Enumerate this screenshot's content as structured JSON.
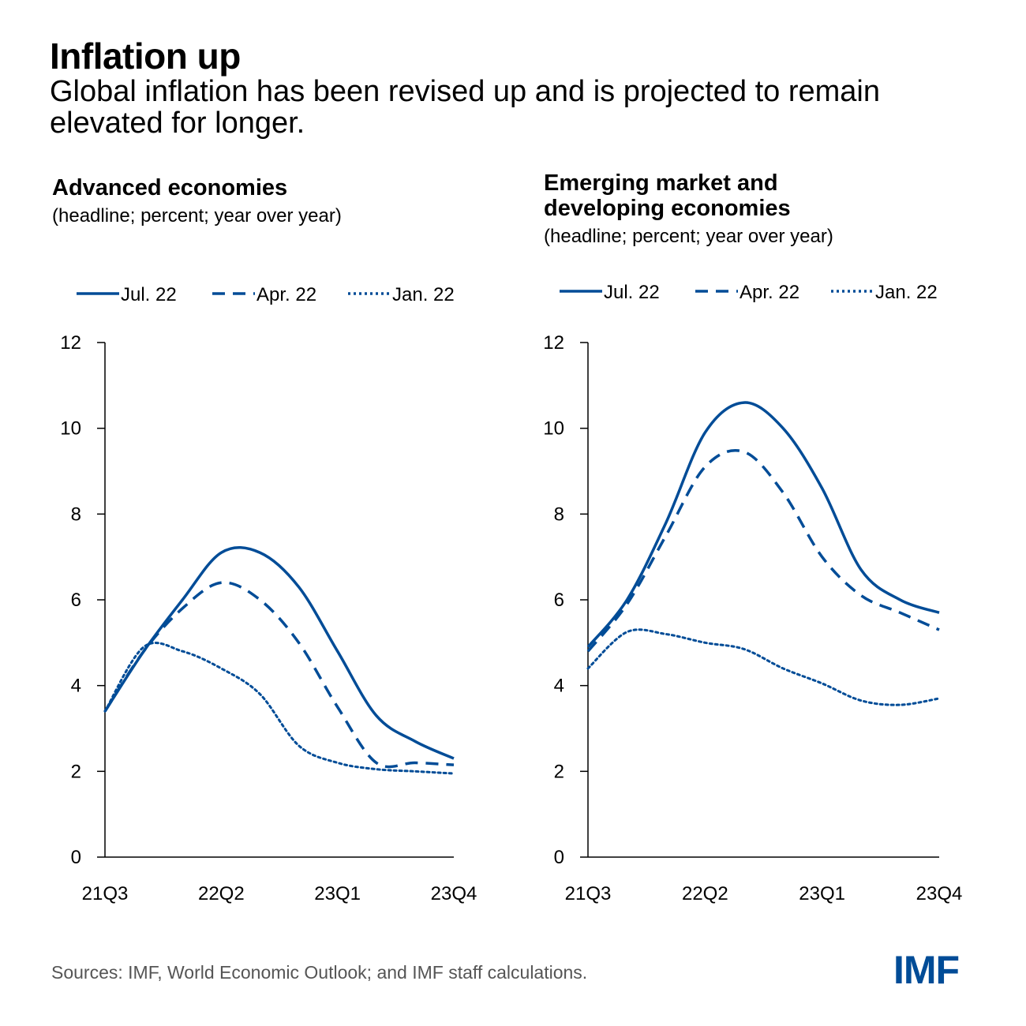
{
  "title": "Inflation up",
  "subtitle": "Global inflation has been revised up and is projected to remain elevated for longer.",
  "source": "Sources: IMF, World Economic Outlook; and IMF staff calculations.",
  "logo": "IMF",
  "colors": {
    "line": "#004C97"
  },
  "chart_data": [
    {
      "type": "line",
      "title": "Advanced economies",
      "subtitle": "(headline; percent; year over year)",
      "x": [
        "21Q3",
        "21Q4",
        "22Q1",
        "22Q2",
        "22Q3",
        "22Q4",
        "23Q1",
        "23Q2",
        "23Q3",
        "23Q4"
      ],
      "xticks": [
        "21Q3",
        "22Q2",
        "23Q1",
        "23Q4"
      ],
      "ylim": [
        0,
        12
      ],
      "yticks": [
        0,
        2,
        4,
        6,
        8,
        10,
        12
      ],
      "legend": "top",
      "series": [
        {
          "name": "Jul. 22",
          "style": "solid",
          "values": [
            3.4,
            4.8,
            6.0,
            7.1,
            7.1,
            6.3,
            4.8,
            3.3,
            2.7,
            2.3
          ]
        },
        {
          "name": "Apr. 22",
          "style": "dashed",
          "values": [
            3.4,
            4.8,
            5.8,
            6.4,
            6.0,
            5.0,
            3.5,
            2.2,
            2.2,
            2.15
          ]
        },
        {
          "name": "Jan. 22",
          "style": "dotted",
          "values": [
            3.4,
            4.9,
            4.8,
            4.4,
            3.8,
            2.6,
            2.2,
            2.05,
            2.0,
            1.95
          ]
        }
      ]
    },
    {
      "type": "line",
      "title": "Emerging market and developing economies",
      "subtitle": "(headline; percent; year over year)",
      "x": [
        "21Q3",
        "21Q4",
        "22Q1",
        "22Q2",
        "22Q3",
        "22Q4",
        "23Q1",
        "23Q2",
        "23Q3",
        "23Q4"
      ],
      "xticks": [
        "21Q3",
        "22Q2",
        "23Q1",
        "23Q4"
      ],
      "ylim": [
        0,
        12
      ],
      "yticks": [
        0,
        2,
        4,
        6,
        8,
        10,
        12
      ],
      "legend": "top",
      "series": [
        {
          "name": "Jul. 22",
          "style": "solid",
          "values": [
            4.9,
            6.0,
            7.8,
            9.9,
            10.6,
            10.0,
            8.6,
            6.7,
            6.0,
            5.7
          ]
        },
        {
          "name": "Apr. 22",
          "style": "dashed",
          "values": [
            4.8,
            5.9,
            7.5,
            9.1,
            9.45,
            8.5,
            7.0,
            6.1,
            5.7,
            5.3
          ]
        },
        {
          "name": "Jan. 22",
          "style": "dotted",
          "values": [
            4.4,
            5.25,
            5.2,
            5.0,
            4.85,
            4.4,
            4.05,
            3.65,
            3.55,
            3.7
          ]
        }
      ]
    }
  ]
}
